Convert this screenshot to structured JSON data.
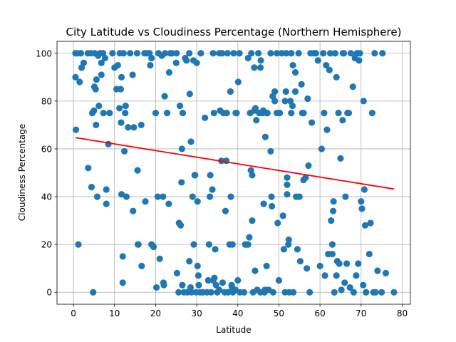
{
  "chart_data": {
    "type": "scatter",
    "title": "City Latitude vs Cloudiness Percentage (Northern Hemisphere)",
    "xlabel": "Latitude",
    "ylabel": "Cloudiness Percentage",
    "xlim": [
      -4,
      82
    ],
    "ylim": [
      -5,
      105
    ],
    "xticks": [
      0,
      10,
      20,
      30,
      40,
      50,
      60,
      70,
      80
    ],
    "yticks": [
      0,
      20,
      40,
      60,
      80,
      100
    ],
    "grid": true,
    "colors": {
      "points": "#1f77b4",
      "regression": "#ff0000"
    },
    "regression": {
      "x": [
        0.5,
        78
      ],
      "y": [
        64.7,
        43.2
      ]
    },
    "points": [
      [
        0.5,
        100
      ],
      [
        0.5,
        90
      ],
      [
        0.6,
        68
      ],
      [
        1,
        100
      ],
      [
        1.2,
        20
      ],
      [
        1.5,
        88
      ],
      [
        1.8,
        100
      ],
      [
        2,
        94
      ],
      [
        2.5,
        96
      ],
      [
        3.5,
        100
      ],
      [
        3.6,
        52
      ],
      [
        4.2,
        100
      ],
      [
        4.4,
        44
      ],
      [
        4.6,
        75
      ],
      [
        4.8,
        0
      ],
      [
        5,
        76
      ],
      [
        5.1,
        86
      ],
      [
        5.2,
        100
      ],
      [
        5.4,
        85
      ],
      [
        5.5,
        70
      ],
      [
        5.6,
        89
      ],
      [
        5.8,
        40
      ],
      [
        6,
        99
      ],
      [
        6.2,
        78
      ],
      [
        6.5,
        100
      ],
      [
        6.8,
        91
      ],
      [
        6.8,
        96
      ],
      [
        7.2,
        100
      ],
      [
        7.3,
        75
      ],
      [
        7.7,
        98
      ],
      [
        8,
        43
      ],
      [
        8,
        37
      ],
      [
        8.5,
        62
      ],
      [
        8.8,
        75
      ],
      [
        9.5,
        100
      ],
      [
        10,
        94
      ],
      [
        10.5,
        85
      ],
      [
        10.8,
        95
      ],
      [
        11.2,
        77
      ],
      [
        11.3,
        100
      ],
      [
        11.5,
        85
      ],
      [
        11.6,
        71
      ],
      [
        11.7,
        90
      ],
      [
        11.7,
        41
      ],
      [
        12,
        15
      ],
      [
        12,
        4
      ],
      [
        12.2,
        100
      ],
      [
        12.4,
        59
      ],
      [
        12.6,
        75
      ],
      [
        12.7,
        78
      ],
      [
        12.9,
        40
      ],
      [
        13.3,
        69
      ],
      [
        13.8,
        100
      ],
      [
        14.4,
        91
      ],
      [
        14.5,
        34
      ],
      [
        14.7,
        69
      ],
      [
        15.5,
        100
      ],
      [
        15.6,
        51
      ],
      [
        15.7,
        20
      ],
      [
        15.8,
        20
      ],
      [
        16.5,
        70
      ],
      [
        16.6,
        11
      ],
      [
        17.3,
        100
      ],
      [
        17.5,
        38
      ],
      [
        17.8,
        100
      ],
      [
        18.5,
        100
      ],
      [
        18.7,
        95
      ],
      [
        19,
        98
      ],
      [
        19,
        20
      ],
      [
        19.5,
        19
      ],
      [
        20,
        75
      ],
      [
        20.2,
        2
      ],
      [
        20.5,
        40
      ],
      [
        20.7,
        100
      ],
      [
        21,
        14
      ],
      [
        21.5,
        99
      ],
      [
        21.8,
        40
      ],
      [
        21.9,
        4
      ],
      [
        22,
        3
      ],
      [
        22.2,
        82
      ],
      [
        22.3,
        100
      ],
      [
        22.8,
        75
      ],
      [
        23.2,
        37
      ],
      [
        23.3,
        92
      ],
      [
        23.6,
        100
      ],
      [
        24,
        100
      ],
      [
        25,
        96
      ],
      [
        25.1,
        100
      ],
      [
        25.2,
        8
      ],
      [
        25.6,
        0
      ],
      [
        25.7,
        29
      ],
      [
        25.9,
        78
      ],
      [
        26.1,
        28
      ],
      [
        26.3,
        46
      ],
      [
        26.4,
        60
      ],
      [
        26.5,
        3
      ],
      [
        26.6,
        75
      ],
      [
        26.9,
        0
      ],
      [
        27.2,
        98
      ],
      [
        27.5,
        97
      ],
      [
        27.7,
        0
      ],
      [
        28.2,
        100
      ],
      [
        28.2,
        13
      ],
      [
        28.3,
        83
      ],
      [
        28.5,
        2
      ],
      [
        28.6,
        63
      ],
      [
        28.7,
        0
      ],
      [
        29,
        40
      ],
      [
        29.2,
        97
      ],
      [
        29.3,
        20
      ],
      [
        29.5,
        49
      ],
      [
        29.6,
        49
      ],
      [
        29.8,
        0
      ],
      [
        30,
        96
      ],
      [
        30.2,
        11
      ],
      [
        30.2,
        38
      ],
      [
        30.4,
        7
      ],
      [
        30.5,
        3
      ],
      [
        30.8,
        0
      ],
      [
        31,
        100
      ],
      [
        31.5,
        0
      ],
      [
        32,
        73
      ],
      [
        32.5,
        0
      ],
      [
        32.8,
        5
      ],
      [
        33,
        20
      ],
      [
        33.2,
        40
      ],
      [
        33.3,
        49
      ],
      [
        33.5,
        0
      ],
      [
        33.8,
        43
      ],
      [
        34,
        100
      ],
      [
        34,
        5
      ],
      [
        34.2,
        75
      ],
      [
        34.3,
        6
      ],
      [
        34.5,
        18
      ],
      [
        34.7,
        3
      ],
      [
        35,
        0
      ],
      [
        35.5,
        100
      ],
      [
        35.5,
        1
      ],
      [
        35.7,
        76
      ],
      [
        36,
        55
      ],
      [
        36.2,
        100
      ],
      [
        36.3,
        4
      ],
      [
        36.5,
        75
      ],
      [
        36.8,
        0
      ],
      [
        37,
        34
      ],
      [
        37.2,
        55
      ],
      [
        37.3,
        75
      ],
      [
        37.5,
        100
      ],
      [
        37.6,
        0
      ],
      [
        38,
        20
      ],
      [
        38.2,
        84
      ],
      [
        38.3,
        40
      ],
      [
        38.5,
        3
      ],
      [
        38.6,
        2
      ],
      [
        38.7,
        20
      ],
      [
        38.8,
        0
      ],
      [
        39,
        100
      ],
      [
        39.4,
        1
      ],
      [
        39.5,
        75
      ],
      [
        39.7,
        75
      ],
      [
        40,
        5
      ],
      [
        40.1,
        88
      ],
      [
        40.4,
        100
      ],
      [
        40.5,
        0
      ],
      [
        41.5,
        0
      ],
      [
        41.8,
        20
      ],
      [
        42,
        20
      ],
      [
        42.5,
        98
      ],
      [
        42.5,
        20
      ],
      [
        42.8,
        23
      ],
      [
        43,
        75
      ],
      [
        43.2,
        51
      ],
      [
        43.3,
        100
      ],
      [
        43.5,
        49
      ],
      [
        43.5,
        30
      ],
      [
        43.7,
        0
      ],
      [
        44,
        94
      ],
      [
        44,
        76
      ],
      [
        44.2,
        9
      ],
      [
        44.3,
        77
      ],
      [
        44.5,
        72
      ],
      [
        44.7,
        1
      ],
      [
        45,
        100
      ],
      [
        45.2,
        75
      ],
      [
        45.5,
        94
      ],
      [
        45.5,
        0
      ],
      [
        45.6,
        97
      ],
      [
        46,
        75
      ],
      [
        46.2,
        76
      ],
      [
        46.3,
        37
      ],
      [
        46.5,
        0
      ],
      [
        46.6,
        1
      ],
      [
        46.7,
        65
      ],
      [
        47,
        11
      ],
      [
        47,
        75
      ],
      [
        47.2,
        75
      ],
      [
        47.5,
        1
      ],
      [
        48,
        100
      ],
      [
        48,
        59
      ],
      [
        48.2,
        40
      ],
      [
        48.3,
        36
      ],
      [
        48.5,
        82
      ],
      [
        48.6,
        0
      ],
      [
        49,
        84
      ],
      [
        49,
        80
      ],
      [
        49.5,
        100
      ],
      [
        49.5,
        75
      ],
      [
        49.7,
        29
      ],
      [
        50,
        5
      ],
      [
        50.2,
        75
      ],
      [
        50.7,
        100
      ],
      [
        51,
        32
      ],
      [
        51.2,
        18
      ],
      [
        51.5,
        0
      ],
      [
        51.5,
        80
      ],
      [
        51.7,
        84
      ],
      [
        51.8,
        100
      ],
      [
        52,
        48
      ],
      [
        52,
        45
      ],
      [
        52,
        41
      ],
      [
        52.3,
        20
      ],
      [
        52.4,
        22
      ],
      [
        52.5,
        0
      ],
      [
        52.8,
        80
      ],
      [
        53,
        75
      ],
      [
        53,
        100
      ],
      [
        53.3,
        78
      ],
      [
        53.4,
        95
      ],
      [
        53.5,
        0
      ],
      [
        54,
        84
      ],
      [
        54,
        92
      ],
      [
        54.2,
        40
      ],
      [
        54.5,
        18
      ],
      [
        54.8,
        100
      ],
      [
        55,
        40
      ],
      [
        55.2,
        13
      ],
      [
        55.5,
        87
      ],
      [
        55.7,
        75
      ],
      [
        56,
        47
      ],
      [
        56,
        75
      ],
      [
        56.5,
        48
      ],
      [
        56.8,
        10
      ],
      [
        57,
        81
      ],
      [
        57.2,
        53
      ],
      [
        57.5,
        0
      ],
      [
        57.7,
        100
      ],
      [
        58,
        71
      ],
      [
        58.5,
        100
      ],
      [
        59,
        100
      ],
      [
        59.5,
        97
      ],
      [
        60,
        11
      ],
      [
        60.4,
        60
      ],
      [
        60.8,
        100
      ],
      [
        61,
        75
      ],
      [
        61.2,
        7
      ],
      [
        61.5,
        95
      ],
      [
        61.7,
        68
      ],
      [
        62,
        16
      ],
      [
        62.3,
        93
      ],
      [
        62.5,
        100
      ],
      [
        62.7,
        30
      ],
      [
        63,
        20
      ],
      [
        63,
        16
      ],
      [
        63.2,
        34
      ],
      [
        63.3,
        38
      ],
      [
        63.5,
        0
      ],
      [
        63.7,
        100
      ],
      [
        64,
        90
      ],
      [
        64,
        7
      ],
      [
        64.2,
        13
      ],
      [
        64.5,
        75
      ],
      [
        64.7,
        12
      ],
      [
        65,
        56
      ],
      [
        65.2,
        1
      ],
      [
        65.5,
        72
      ],
      [
        65.6,
        100
      ],
      [
        65.8,
        100
      ],
      [
        66,
        4
      ],
      [
        66.2,
        40
      ],
      [
        66.5,
        12
      ],
      [
        66.7,
        75
      ],
      [
        67,
        75
      ],
      [
        67.3,
        2
      ],
      [
        67.5,
        100
      ],
      [
        68,
        86
      ],
      [
        68.2,
        0
      ],
      [
        68.5,
        98
      ],
      [
        68.8,
        7
      ],
      [
        69,
        100
      ],
      [
        69.3,
        12
      ],
      [
        69.5,
        97
      ],
      [
        69.7,
        100
      ],
      [
        70,
        38
      ],
      [
        70.2,
        35
      ],
      [
        70.5,
        3
      ],
      [
        70.6,
        80
      ],
      [
        70.8,
        43
      ],
      [
        71,
        28
      ],
      [
        71.2,
        0
      ],
      [
        72,
        16
      ],
      [
        72.3,
        29
      ],
      [
        72.7,
        75
      ],
      [
        73,
        0
      ],
      [
        73.3,
        100
      ],
      [
        73.5,
        0
      ],
      [
        74,
        9
      ],
      [
        75,
        0
      ],
      [
        75.2,
        100
      ],
      [
        76,
        8
      ],
      [
        78,
        0
      ]
    ]
  }
}
